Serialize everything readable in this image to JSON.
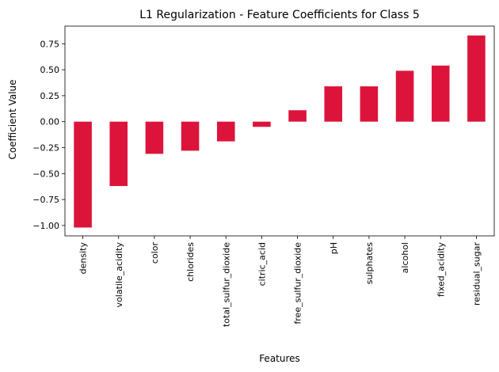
{
  "chart_data": {
    "type": "bar",
    "title": "L1 Regularization - Feature Coefficients for Class 5",
    "xlabel": "Features",
    "ylabel": "Coefficient Value",
    "categories": [
      "density",
      "volatile_acidity",
      "color",
      "chlorides",
      "total_sulfur_dioxide",
      "citric_acid",
      "free_sulfur_dioxide",
      "pH",
      "sulphates",
      "alcohol",
      "fixed_acidity",
      "residual_sugar"
    ],
    "values": [
      -1.02,
      -0.62,
      -0.31,
      -0.28,
      -0.19,
      -0.05,
      0.11,
      0.34,
      0.34,
      0.49,
      0.54,
      0.83
    ],
    "ylim": [
      -1.1,
      0.92
    ],
    "yticks": [
      -1.0,
      -0.75,
      -0.5,
      -0.25,
      0.0,
      0.25,
      0.5,
      0.75
    ],
    "ytick_labels": [
      "−1.00",
      "−0.75",
      "−0.50",
      "−0.25",
      "0.00",
      "0.25",
      "0.50",
      "0.75"
    ],
    "grid": false,
    "bar_color": "#DC143C"
  }
}
